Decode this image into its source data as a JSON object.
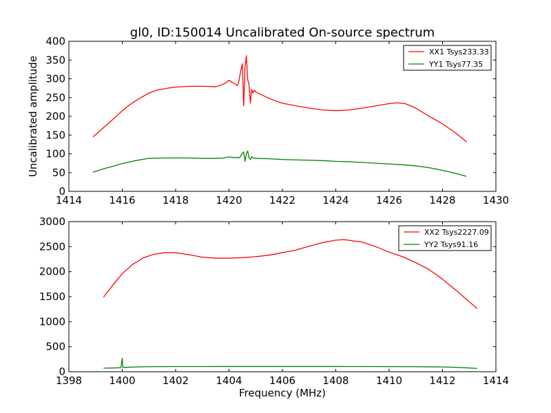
{
  "title": "gl0, ID:150014 Uncalibrated On-source spectrum",
  "colors": {
    "red": "#ff0000",
    "green": "#008000",
    "axis": "#000000"
  },
  "chart_data": [
    {
      "type": "line",
      "ylabel": "Uncalibrated amplitude",
      "xlabel": "",
      "xlim": [
        1414,
        1430
      ],
      "ylim": [
        0,
        400
      ],
      "xticks": [
        1414,
        1416,
        1418,
        1420,
        1422,
        1424,
        1426,
        1428,
        1430
      ],
      "yticks": [
        0,
        50,
        100,
        150,
        200,
        250,
        300,
        350,
        400
      ],
      "legend_position": "top-right",
      "series": [
        {
          "name": "XX1 Tsys233.33",
          "color": "#ff0000",
          "x": [
            1414.9,
            1415.3,
            1415.7,
            1416.0,
            1416.3,
            1416.7,
            1417.0,
            1417.3,
            1417.7,
            1418.0,
            1418.5,
            1419.0,
            1419.5,
            1419.7,
            1419.9,
            1420.0,
            1420.1,
            1420.2,
            1420.3,
            1420.35,
            1420.45,
            1420.5,
            1420.55,
            1420.6,
            1420.65,
            1420.7,
            1420.75,
            1420.8,
            1420.85,
            1420.9,
            1420.95,
            1421.0,
            1421.2,
            1421.5,
            1421.8,
            1422.0,
            1422.5,
            1423.0,
            1423.5,
            1424.0,
            1424.5,
            1425.0,
            1425.5,
            1426.0,
            1426.3,
            1426.6,
            1427.0,
            1427.5,
            1428.0,
            1428.5,
            1428.9
          ],
          "y": [
            145,
            170,
            195,
            215,
            232,
            250,
            262,
            270,
            275,
            278,
            280,
            280,
            279,
            283,
            290,
            296,
            291,
            288,
            282,
            287,
            325,
            340,
            228,
            330,
            362,
            298,
            285,
            235,
            272,
            262,
            270,
            265,
            258,
            248,
            240,
            235,
            228,
            222,
            217,
            215,
            217,
            222,
            228,
            234,
            236,
            234,
            222,
            200,
            180,
            155,
            132
          ]
        },
        {
          "name": "YY1 Tsys77.35",
          "color": "#008000",
          "x": [
            1414.9,
            1415.3,
            1415.7,
            1416.0,
            1416.5,
            1417.0,
            1417.5,
            1418.0,
            1418.5,
            1419.0,
            1419.5,
            1419.8,
            1420.0,
            1420.2,
            1420.4,
            1420.5,
            1420.55,
            1420.6,
            1420.65,
            1420.7,
            1420.75,
            1420.8,
            1420.85,
            1420.9,
            1421.0,
            1421.5,
            1422.0,
            1422.5,
            1423.0,
            1423.5,
            1424.0,
            1424.5,
            1425.0,
            1425.5,
            1426.0,
            1426.5,
            1427.0,
            1427.5,
            1428.0,
            1428.5,
            1428.9
          ],
          "y": [
            51,
            60,
            68,
            74,
            82,
            88,
            89,
            89,
            89,
            88,
            88,
            89,
            92,
            90,
            90,
            102,
            105,
            80,
            100,
            108,
            90,
            85,
            92,
            89,
            88,
            87,
            85,
            84,
            83,
            82,
            80,
            79,
            77,
            75,
            73,
            71,
            68,
            63,
            56,
            48,
            40
          ]
        }
      ]
    },
    {
      "type": "line",
      "ylabel": "",
      "xlabel": "Frequency (MHz)",
      "xlim": [
        1398,
        1414
      ],
      "ylim": [
        0,
        3000
      ],
      "xticks": [
        1398,
        1400,
        1402,
        1404,
        1406,
        1408,
        1410,
        1412,
        1414
      ],
      "yticks": [
        0,
        500,
        1000,
        1500,
        2000,
        2500,
        3000
      ],
      "legend_position": "top-right",
      "series": [
        {
          "name": "XX2 Tsys2227.09",
          "color": "#ff0000",
          "x": [
            1399.3,
            1399.6,
            1400.0,
            1400.4,
            1400.8,
            1401.2,
            1401.6,
            1402.0,
            1402.5,
            1403.0,
            1403.5,
            1404.0,
            1404.5,
            1405.0,
            1405.5,
            1406.0,
            1406.5,
            1407.0,
            1407.5,
            1408.0,
            1408.3,
            1408.6,
            1409.0,
            1409.5,
            1410.0,
            1410.5,
            1411.0,
            1411.5,
            1412.0,
            1412.5,
            1413.0,
            1413.3
          ],
          "y": [
            1490,
            1700,
            1960,
            2150,
            2280,
            2350,
            2380,
            2380,
            2340,
            2290,
            2270,
            2270,
            2280,
            2300,
            2330,
            2380,
            2430,
            2510,
            2580,
            2630,
            2640,
            2620,
            2590,
            2500,
            2390,
            2300,
            2180,
            2040,
            1850,
            1630,
            1400,
            1260
          ]
        },
        {
          "name": "YY2 Tsys91.16",
          "color": "#008000",
          "x": [
            1399.3,
            1399.7,
            1399.95,
            1400.0,
            1400.02,
            1400.05,
            1400.5,
            1401.0,
            1401.5,
            1402.0,
            1403.0,
            1404.0,
            1405.0,
            1406.0,
            1407.0,
            1408.0,
            1409.0,
            1410.0,
            1411.0,
            1412.0,
            1412.5,
            1413.0,
            1413.3
          ],
          "y": [
            70,
            75,
            80,
            270,
            90,
            85,
            95,
            100,
            102,
            103,
            103,
            104,
            104,
            104,
            104,
            104,
            103,
            102,
            100,
            95,
            88,
            75,
            65
          ]
        }
      ]
    }
  ]
}
